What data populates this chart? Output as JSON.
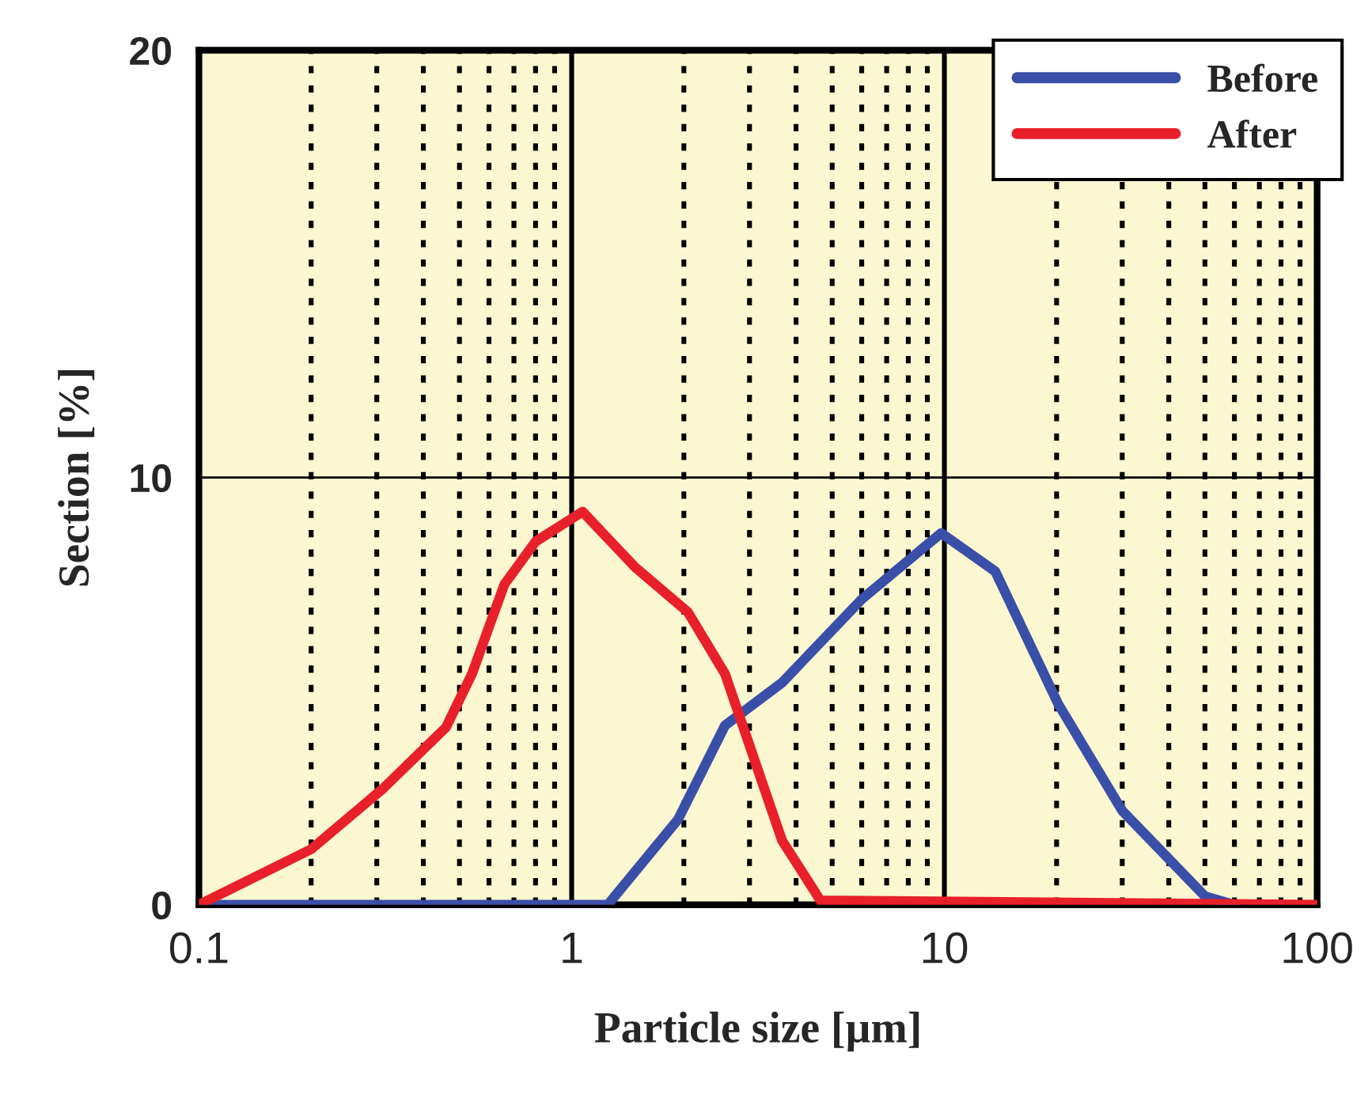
{
  "chart_data": {
    "type": "line",
    "xlabel": "Particle size [µm]",
    "ylabel": "Section [%]",
    "log": "x",
    "xlim": [
      0.1,
      100
    ],
    "xticks": [
      0.1,
      1,
      10,
      100
    ],
    "ylim": [
      0,
      20
    ],
    "yticks": [
      0,
      10,
      20
    ],
    "grid": "x",
    "ref_lines": [
      {
        "axis": "y",
        "value": 10,
        "color": "#000000",
        "line_style": "solid"
      }
    ],
    "legend": "top right",
    "marker": "none",
    "line_style": "solid",
    "series": [
      {
        "name": "Before",
        "color": "#3a4fa8",
        "x": [
          0.1,
          1.25,
          1.93,
          2.58,
          3.67,
          6.0,
          9.8,
          13.7,
          20.2,
          30,
          50,
          60
        ],
        "values": [
          0,
          0,
          2.0,
          4.2,
          5.2,
          7.15,
          8.7,
          7.8,
          4.7,
          2.2,
          0.2,
          0
        ]
      },
      {
        "name": "After",
        "color": "#e8202a",
        "x": [
          0.1,
          0.2,
          0.31,
          0.46,
          0.54,
          0.66,
          0.8,
          1.07,
          1.48,
          2.05,
          2.58,
          2.85,
          3.67,
          4.65,
          100
        ],
        "values": [
          0,
          1.3,
          2.7,
          4.15,
          5.4,
          7.5,
          8.5,
          9.2,
          7.9,
          6.85,
          5.4,
          4.3,
          1.5,
          0.1,
          0
        ]
      }
    ]
  }
}
